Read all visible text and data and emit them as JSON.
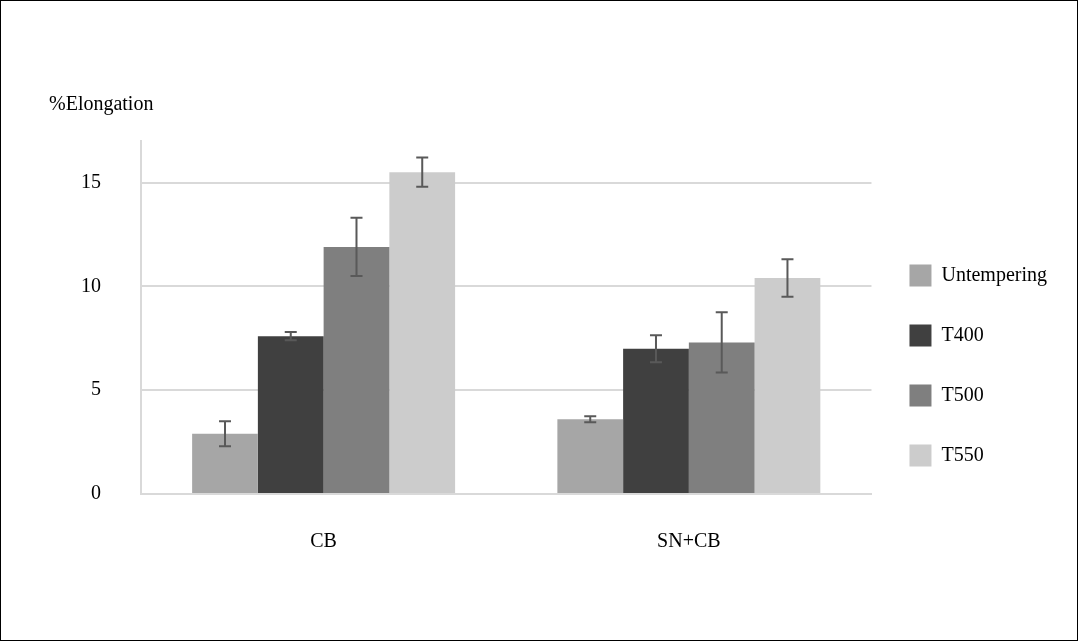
{
  "chart_data": {
    "type": "bar",
    "ylabel": "%Elongation",
    "categories": [
      "CB",
      "SN+CB"
    ],
    "series": [
      {
        "name": "Untempering",
        "color": "#a6a6a6",
        "values": [
          2.9,
          3.6
        ],
        "errors": [
          0.6,
          0.15
        ]
      },
      {
        "name": "T400",
        "color": "#404040",
        "values": [
          7.6,
          7.0
        ],
        "errors": [
          0.2,
          0.65
        ]
      },
      {
        "name": "T500",
        "color": "#7f7f7f",
        "values": [
          11.9,
          7.3
        ],
        "errors": [
          1.4,
          1.45
        ]
      },
      {
        "name": "T550",
        "color": "#cccccc",
        "values": [
          15.5,
          10.4
        ],
        "errors": [
          0.7,
          0.9
        ]
      }
    ],
    "ylim": [
      0,
      17
    ],
    "yticks": [
      0,
      5,
      10,
      15
    ],
    "grid": "y",
    "legend": "right"
  }
}
